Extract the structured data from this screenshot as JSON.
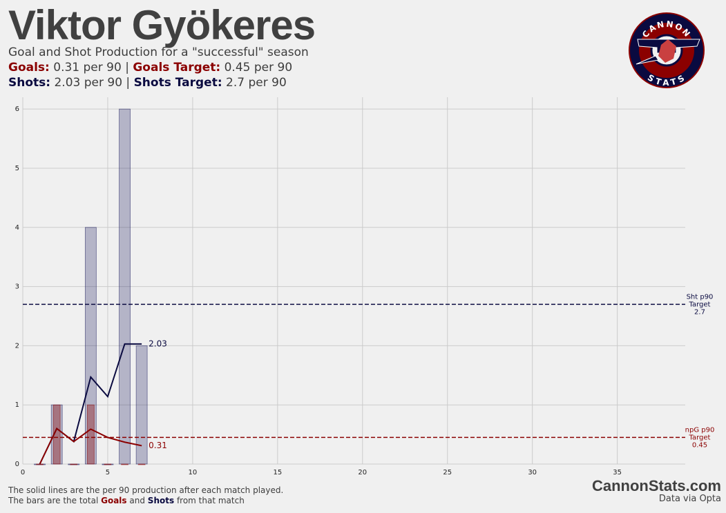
{
  "header": {
    "title": "Viktor Gyökeres",
    "subtitle": "Goal and Shot Production for a \"successful\" season",
    "goals_label": "Goals:",
    "goals_value": "0.31 per 90",
    "separator": "|",
    "goals_target_label": "Goals Target:",
    "goals_target_value": "0.45 per 90",
    "shots_label": "Shots:",
    "shots_value": "2.03 per 90",
    "shots_target_label": "Shots Target:",
    "shots_target_value": "2.7 per 90"
  },
  "logo": {
    "top": "CANNON",
    "bottom": "STATS"
  },
  "chart_data": {
    "type": "bar-line",
    "x": [
      1,
      2,
      3,
      4,
      5,
      6,
      7
    ],
    "bars": [
      {
        "color": "#1a1a5e",
        "values": [
          0,
          1,
          0,
          4,
          0,
          6,
          2
        ]
      },
      {
        "color": "#8b0000",
        "values": [
          0,
          1,
          0,
          1,
          0,
          0,
          0
        ]
      }
    ],
    "lines": [
      {
        "color": "#0a0a40",
        "values": [
          0,
          0.6,
          0.38,
          1.47,
          1.14,
          2.03,
          2.03
        ]
      },
      {
        "color": "#8b0000",
        "values": [
          0,
          0.6,
          0.38,
          0.59,
          0.45,
          0.37,
          0.31
        ]
      }
    ],
    "targets": [
      {
        "label_lines": [
          "Sht p90",
          "Target"
        ],
        "value": 2.7,
        "color": "#0a0a40"
      },
      {
        "label_lines": [
          "npG p90",
          "Target"
        ],
        "value": 0.45,
        "color": "#8b0000"
      }
    ],
    "xlim": [
      0,
      39
    ],
    "xticks": [
      0,
      5,
      10,
      15,
      20,
      25,
      30,
      35
    ],
    "ylim": [
      0,
      6.2
    ],
    "yticks": [
      0,
      1,
      2,
      3,
      4,
      5,
      6
    ],
    "grid": true
  },
  "footer": {
    "note1": "The solid lines are the per 90 production after each match played.",
    "note2_a": "The bars are the total",
    "note2_goals": "Goals",
    "note2_and": "and",
    "note2_shots": "Shots",
    "note2_b": "from that match",
    "brand": "CannonStats.com",
    "source": "Data via Opta"
  }
}
